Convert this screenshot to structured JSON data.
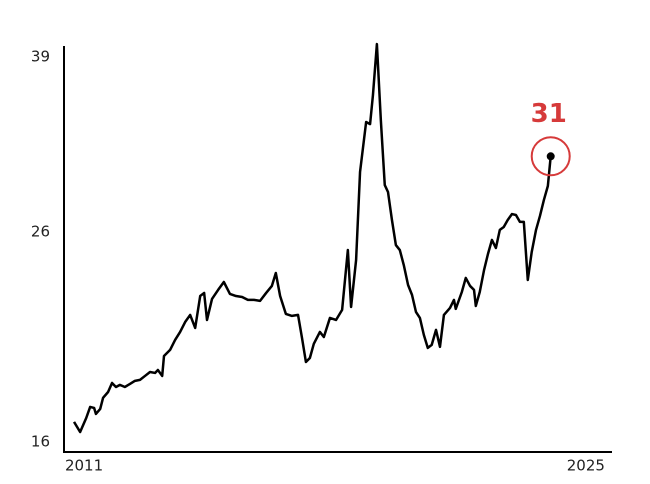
{
  "chart_data": {
    "type": "line",
    "x": [
      2010.72,
      2010.89,
      2011.06,
      2011.17,
      2011.28,
      2011.33,
      2011.45,
      2011.53,
      2011.67,
      2011.78,
      2011.89,
      2012.0,
      2012.14,
      2012.28,
      2012.42,
      2012.56,
      2012.7,
      2012.84,
      2012.98,
      2013.06,
      2013.18,
      2013.23,
      2013.4,
      2013.54,
      2013.68,
      2013.82,
      2013.96,
      2014.1,
      2014.24,
      2014.35,
      2014.43,
      2014.57,
      2014.74,
      2014.9,
      2015.07,
      2015.24,
      2015.41,
      2015.57,
      2015.74,
      2015.91,
      2016.08,
      2016.24,
      2016.35,
      2016.47,
      2016.63,
      2016.8,
      2016.97,
      2017.08,
      2017.19,
      2017.3,
      2017.41,
      2017.58,
      2017.69,
      2017.86,
      2018.03,
      2018.2,
      2018.36,
      2018.45,
      2018.59,
      2018.7,
      2018.87,
      2018.98,
      2019.06,
      2019.17,
      2019.28,
      2019.39,
      2019.48,
      2019.59,
      2019.7,
      2019.81,
      2019.92,
      2020.04,
      2020.15,
      2020.26,
      2020.37,
      2020.48,
      2020.59,
      2020.7,
      2020.82,
      2020.93,
      2021.04,
      2021.21,
      2021.32,
      2021.37,
      2021.54,
      2021.65,
      2021.77,
      2021.88,
      2021.93,
      2022.04,
      2022.16,
      2022.27,
      2022.38,
      2022.49,
      2022.6,
      2022.71,
      2022.82,
      2022.94,
      2023.05,
      2023.16,
      2023.27,
      2023.38,
      2023.49,
      2023.61,
      2023.72,
      2023.83,
      2023.94,
      2024.02
    ],
    "values": [
      16.76,
      16.37,
      16.91,
      17.35,
      17.31,
      17.07,
      17.27,
      17.72,
      17.96,
      18.34,
      18.17,
      18.26,
      18.17,
      18.3,
      18.43,
      18.47,
      18.64,
      18.81,
      18.77,
      18.9,
      18.64,
      19.52,
      19.8,
      20.26,
      20.64,
      21.12,
      21.47,
      20.83,
      22.43,
      22.59,
      21.22,
      22.28,
      22.75,
      23.17,
      22.54,
      22.43,
      22.38,
      22.23,
      22.23,
      22.18,
      22.59,
      22.96,
      23.66,
      22.43,
      21.52,
      21.42,
      21.47,
      20.36,
      19.25,
      19.43,
      20.08,
      20.64,
      20.4,
      21.32,
      21.22,
      21.72,
      24.95,
      21.87,
      24.38,
      29.89,
      33.56,
      33.4,
      35.72,
      40.2,
      33.72,
      29.0,
      28.54,
      26.75,
      25.24,
      24.95,
      24.1,
      23.01,
      22.49,
      21.62,
      21.32,
      20.5,
      19.89,
      20.03,
      20.74,
      19.94,
      21.47,
      21.82,
      22.23,
      21.77,
      22.64,
      23.39,
      22.96,
      22.75,
      21.92,
      22.64,
      23.82,
      24.73,
      25.54,
      25.07,
      26.14,
      26.32,
      26.75,
      27.12,
      27.06,
      26.63,
      26.63,
      23.28,
      24.84,
      26.14,
      27.0,
      28.02,
      28.94,
      31
    ],
    "color": "#000000",
    "highlight_color": "#d63a3a",
    "xlim": [
      2010.44,
      2025.73
    ],
    "xticks": [
      2011,
      2025
    ],
    "ylim": [
      15.63,
      40.58
    ],
    "yticks": [
      16,
      26,
      39
    ],
    "log_y": true
  }
}
